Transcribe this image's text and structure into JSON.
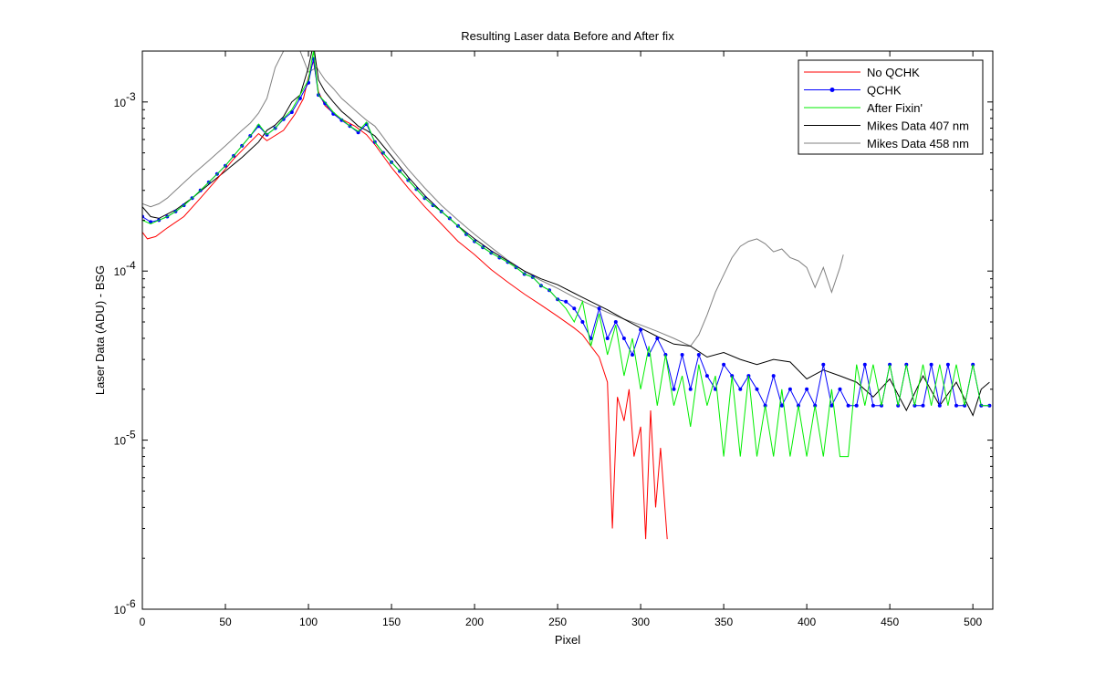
{
  "chart_data": {
    "type": "line",
    "title": "Resulting Laser data Before and After fix",
    "xlabel": "Pixel",
    "ylabel": "Laser Data (ADU) - BSG",
    "xlim": [
      0,
      512
    ],
    "ylim": [
      1e-06,
      0.002
    ],
    "yscale": "log",
    "xticks": [
      0,
      50,
      100,
      150,
      200,
      250,
      300,
      350,
      400,
      450,
      500
    ],
    "xtick_labels": [
      "0",
      "50",
      "100",
      "150",
      "200",
      "250",
      "300",
      "350",
      "400",
      "450",
      "500"
    ],
    "yticks": [
      1e-06,
      1e-05,
      0.0001,
      0.001
    ],
    "ytick_labels": [
      {
        "mantissa": "10",
        "exponent": "-6"
      },
      {
        "mantissa": "10",
        "exponent": "-5"
      },
      {
        "mantissa": "10",
        "exponent": "-4"
      },
      {
        "mantissa": "10",
        "exponent": "-3"
      }
    ],
    "grid": false,
    "legend_position": "top-right",
    "series": [
      {
        "name": "No QCHK",
        "color": "#ff0000",
        "marker": "none",
        "x": [
          0,
          3,
          8,
          15,
          25,
          35,
          45,
          55,
          65,
          70,
          75,
          85,
          92,
          97,
          100,
          103,
          106,
          110,
          118,
          128,
          135,
          140,
          150,
          160,
          170,
          180,
          190,
          200,
          210,
          220,
          230,
          240,
          250,
          260,
          265,
          270,
          275,
          280,
          283,
          286,
          290,
          293,
          296,
          300,
          303,
          306,
          309,
          312,
          316
        ],
        "y": [
          0.00017,
          0.000155,
          0.00016,
          0.00018,
          0.00021,
          0.00027,
          0.00035,
          0.00046,
          0.00058,
          0.00065,
          0.00059,
          0.00068,
          0.00085,
          0.00105,
          0.0014,
          0.00175,
          0.00115,
          0.00095,
          0.00081,
          0.00072,
          0.00064,
          0.00056,
          0.00041,
          0.00031,
          0.00024,
          0.00019,
          0.00015,
          0.000125,
          0.000102,
          8.6e-05,
          7.3e-05,
          6.3e-05,
          5.4e-05,
          4.6e-05,
          4.2e-05,
          3.6e-05,
          3.1e-05,
          2.2e-05,
          3e-06,
          1.8e-05,
          1.3e-05,
          2e-05,
          8e-06,
          1.2e-05,
          2.6e-06,
          1.5e-05,
          4e-06,
          9e-06,
          2.6e-06
        ]
      },
      {
        "name": "QCHK",
        "color": "#0000ff",
        "marker": "dot",
        "x": [
          0,
          5,
          10,
          15,
          20,
          25,
          30,
          35,
          40,
          45,
          50,
          55,
          60,
          65,
          70,
          75,
          80,
          85,
          90,
          95,
          100,
          103,
          106,
          110,
          115,
          120,
          125,
          130,
          135,
          140,
          145,
          150,
          155,
          160,
          165,
          170,
          175,
          180,
          185,
          190,
          195,
          200,
          205,
          210,
          215,
          220,
          225,
          230,
          235,
          240,
          245,
          250,
          255,
          260,
          265,
          270,
          275,
          280,
          285,
          290,
          295,
          300,
          305,
          310,
          315,
          320,
          325,
          330,
          335,
          340,
          345,
          350,
          355,
          360,
          365,
          370,
          375,
          380,
          385,
          390,
          395,
          400,
          405,
          410,
          415,
          420,
          425,
          430,
          435,
          440,
          445,
          450,
          455,
          460,
          465,
          470,
          475,
          480,
          485,
          490,
          495,
          500,
          505,
          510
        ],
        "y": [
          0.00021,
          0.000195,
          0.0002,
          0.00021,
          0.000225,
          0.000245,
          0.00027,
          0.0003,
          0.000335,
          0.000375,
          0.00042,
          0.00048,
          0.00055,
          0.00063,
          0.00072,
          0.00064,
          0.0007,
          0.00079,
          0.00087,
          0.00105,
          0.0013,
          0.0018,
          0.0011,
          0.00098,
          0.00085,
          0.00078,
          0.00072,
          0.00066,
          0.00074,
          0.00058,
          0.0005,
          0.00044,
          0.00039,
          0.000345,
          0.000305,
          0.00027,
          0.000245,
          0.000225,
          0.000205,
          0.000185,
          0.000165,
          0.00015,
          0.000138,
          0.000128,
          0.00012,
          0.000113,
          0.000105,
          9.6e-05,
          9.2e-05,
          8.2e-05,
          7.7e-05,
          6.8e-05,
          6.6e-05,
          6e-05,
          5e-05,
          4e-05,
          6e-05,
          4e-05,
          5e-05,
          4e-05,
          3.2e-05,
          4.5e-05,
          3.2e-05,
          4e-05,
          3.2e-05,
          2e-05,
          3.2e-05,
          2e-05,
          3.2e-05,
          2.4e-05,
          2e-05,
          2.8e-05,
          2.4e-05,
          2e-05,
          2.4e-05,
          2e-05,
          1.6e-05,
          2.4e-05,
          1.6e-05,
          2e-05,
          1.6e-05,
          2e-05,
          1.6e-05,
          2.8e-05,
          1.6e-05,
          2e-05,
          1.6e-05,
          1.6e-05,
          2.8e-05,
          1.6e-05,
          1.6e-05,
          2.8e-05,
          1.6e-05,
          2.8e-05,
          1.6e-05,
          1.6e-05,
          2.8e-05,
          1.6e-05,
          2.8e-05,
          1.6e-05,
          1.6e-05,
          2.8e-05,
          1.6e-05,
          1.6e-05
        ]
      },
      {
        "name": "After Fixin'",
        "color": "#00ee00",
        "marker": "none",
        "x": [
          0,
          5,
          10,
          15,
          20,
          25,
          30,
          35,
          40,
          45,
          50,
          55,
          60,
          65,
          70,
          75,
          80,
          85,
          90,
          95,
          100,
          103,
          106,
          110,
          115,
          120,
          125,
          130,
          135,
          140,
          145,
          150,
          155,
          160,
          165,
          170,
          175,
          180,
          185,
          190,
          195,
          200,
          205,
          210,
          215,
          220,
          225,
          230,
          235,
          240,
          245,
          250,
          255,
          260,
          265,
          270,
          275,
          280,
          285,
          290,
          295,
          300,
          305,
          310,
          315,
          320,
          325,
          330,
          335,
          340,
          345,
          350,
          355,
          360,
          365,
          370,
          375,
          380,
          385,
          390,
          395,
          400,
          405,
          410,
          415,
          420,
          425,
          430,
          435,
          440,
          445,
          450,
          455,
          460,
          465,
          470,
          475,
          480,
          485,
          490,
          495,
          500,
          505,
          510
        ],
        "y": [
          0.0002,
          0.00019,
          0.0002,
          0.00021,
          0.000225,
          0.000245,
          0.00027,
          0.0003,
          0.000335,
          0.000375,
          0.00042,
          0.00048,
          0.00055,
          0.00063,
          0.00074,
          0.00064,
          0.0007,
          0.0008,
          0.0009,
          0.0011,
          0.00135,
          0.002,
          0.0011,
          0.001,
          0.00087,
          0.00079,
          0.00072,
          0.00067,
          0.00076,
          0.00058,
          0.0005,
          0.00044,
          0.00039,
          0.000345,
          0.000305,
          0.00027,
          0.000245,
          0.000225,
          0.000205,
          0.000185,
          0.000165,
          0.00015,
          0.000138,
          0.000128,
          0.00012,
          0.000113,
          0.000105,
          9.6e-05,
          9.2e-05,
          8.2e-05,
          7.7e-05,
          6.8e-05,
          6e-05,
          5e-05,
          6.6e-05,
          3.6e-05,
          5.6e-05,
          3.2e-05,
          4.8e-05,
          2.4e-05,
          4e-05,
          2e-05,
          3.6e-05,
          1.6e-05,
          3.2e-05,
          1.6e-05,
          2.4e-05,
          1.2e-05,
          2.8e-05,
          1.6e-05,
          2.4e-05,
          8e-06,
          2.4e-05,
          8e-06,
          2.4e-05,
          8e-06,
          1.6e-05,
          8e-06,
          2e-05,
          8e-06,
          1.6e-05,
          8e-06,
          1.6e-05,
          8e-06,
          2e-05,
          8e-06,
          8e-06,
          2.8e-05,
          1.6e-05,
          2.8e-05,
          1.6e-05,
          2.8e-05,
          1.6e-05,
          2.8e-05,
          1.6e-05,
          2.8e-05,
          1.6e-05,
          2.8e-05,
          1.6e-05,
          2.8e-05,
          1.6e-05,
          2.8e-05,
          1.6e-05,
          1.6e-05
        ]
      },
      {
        "name": "Mikes Data 407 nm",
        "color": "#000000",
        "marker": "none",
        "x": [
          0,
          5,
          10,
          20,
          30,
          40,
          50,
          60,
          70,
          75,
          80,
          85,
          90,
          95,
          100,
          103,
          106,
          110,
          115,
          120,
          125,
          130,
          135,
          140,
          150,
          160,
          170,
          180,
          190,
          200,
          210,
          220,
          230,
          240,
          250,
          260,
          270,
          280,
          290,
          300,
          310,
          320,
          330,
          340,
          350,
          360,
          370,
          380,
          390,
          400,
          410,
          420,
          430,
          440,
          450,
          460,
          470,
          480,
          490,
          500,
          505,
          510
        ],
        "y": [
          0.00024,
          0.00021,
          0.000205,
          0.00023,
          0.00027,
          0.000325,
          0.00039,
          0.00047,
          0.00058,
          0.00068,
          0.00073,
          0.00082,
          0.001,
          0.0011,
          0.0016,
          0.0022,
          0.00135,
          0.00115,
          0.001,
          0.00088,
          0.0008,
          0.00072,
          0.00068,
          0.00063,
          0.00048,
          0.00036,
          0.00028,
          0.000225,
          0.000185,
          0.000155,
          0.000132,
          0.000115,
          0.0001,
          9e-05,
          8.3e-05,
          7.4e-05,
          6.6e-05,
          5.9e-05,
          5.2e-05,
          4.6e-05,
          4.1e-05,
          3.7e-05,
          3.6e-05,
          3.1e-05,
          3.3e-05,
          3e-05,
          2.8e-05,
          3e-05,
          2.9e-05,
          2.3e-05,
          2.6e-05,
          2.4e-05,
          2.2e-05,
          1.8e-05,
          2.3e-05,
          1.5e-05,
          2.4e-05,
          1.6e-05,
          2.2e-05,
          1.4e-05,
          2e-05,
          2.2e-05
        ]
      },
      {
        "name": "Mikes Data 458 nm",
        "color": "#808080",
        "marker": "none",
        "x": [
          0,
          5,
          10,
          15,
          20,
          30,
          40,
          50,
          60,
          65,
          70,
          75,
          80,
          85,
          90,
          95,
          100,
          105,
          110,
          115,
          120,
          125,
          130,
          135,
          140,
          145,
          150,
          160,
          170,
          180,
          190,
          200,
          210,
          220,
          230,
          240,
          250,
          260,
          270,
          280,
          290,
          300,
          310,
          320,
          330,
          335,
          340,
          345,
          350,
          355,
          360,
          365,
          370,
          375,
          380,
          385,
          390,
          395,
          400,
          405,
          410,
          415,
          420,
          422
        ],
        "y": [
          0.00025,
          0.00024,
          0.00025,
          0.00027,
          0.0003,
          0.00037,
          0.00045,
          0.00055,
          0.00068,
          0.00075,
          0.00086,
          0.00105,
          0.0016,
          0.002,
          0.002,
          0.002,
          0.0015,
          0.0016,
          0.00135,
          0.0012,
          0.00105,
          0.00095,
          0.00086,
          0.00078,
          0.00072,
          0.00062,
          0.00053,
          0.0004,
          0.00031,
          0.000245,
          0.0002,
          0.000165,
          0.000138,
          0.000116,
          0.0001,
          8.8e-05,
          7.9e-05,
          7e-05,
          6.3e-05,
          5.7e-05,
          5.2e-05,
          4.8e-05,
          4.4e-05,
          4e-05,
          3.6e-05,
          4.2e-05,
          5.5e-05,
          7.5e-05,
          9.5e-05,
          0.00012,
          0.00014,
          0.00015,
          0.000155,
          0.000145,
          0.00013,
          0.000135,
          0.00012,
          0.000115,
          0.000105,
          8e-05,
          0.000105,
          7.5e-05,
          0.000105,
          0.000125
        ]
      }
    ]
  }
}
